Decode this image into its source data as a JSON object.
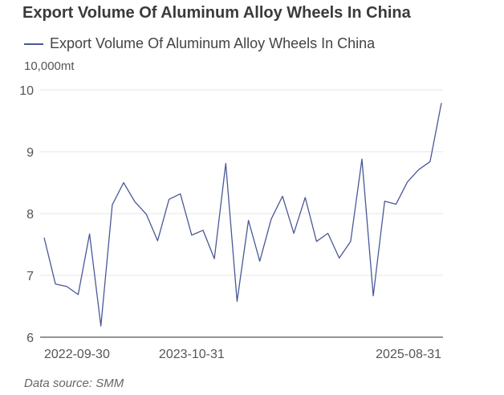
{
  "chart_data": {
    "type": "line",
    "title": "Export Volume Of Aluminum Alloy Wheels In China",
    "ylabel": "10,000mt",
    "xlabel": "",
    "ylim": [
      6,
      10
    ],
    "yticks": [
      "6",
      "7",
      "8",
      "9",
      "10"
    ],
    "xtick_labels": [
      "2022-09-30",
      "2023-10-31",
      "2025-08-31"
    ],
    "grid": true,
    "legend_position": "top-left",
    "x": [
      "2022-09-30",
      "2022-10-31",
      "2022-11-30",
      "2022-12-31",
      "2023-01-31",
      "2023-02-28",
      "2023-03-31",
      "2023-04-30",
      "2023-05-31",
      "2023-06-30",
      "2023-07-31",
      "2023-08-31",
      "2023-09-30",
      "2023-10-31",
      "2023-11-30",
      "2023-12-31",
      "2024-01-31",
      "2024-02-29",
      "2024-03-31",
      "2024-04-30",
      "2024-05-31",
      "2024-06-30",
      "2024-07-31",
      "2024-08-31",
      "2024-09-30",
      "2024-10-31",
      "2024-11-30",
      "2024-12-31",
      "2025-01-31",
      "2025-02-28",
      "2025-03-31",
      "2025-04-30",
      "2025-05-31",
      "2025-06-30",
      "2025-07-31",
      "2025-08-31"
    ],
    "series": [
      {
        "name": "Export Volume Of Aluminum Alloy Wheels In China",
        "color": "#4a5896",
        "values": [
          7.61,
          6.86,
          6.82,
          6.69,
          7.67,
          6.18,
          8.14,
          8.5,
          8.19,
          7.99,
          7.56,
          8.23,
          8.32,
          7.65,
          7.73,
          7.27,
          8.81,
          6.58,
          7.89,
          7.23,
          7.91,
          8.28,
          7.68,
          8.26,
          7.55,
          7.68,
          7.28,
          7.55,
          8.88,
          6.67,
          8.2,
          8.15,
          8.51,
          8.71,
          8.84,
          9.79
        ]
      }
    ]
  },
  "source": "Data source:  SMM"
}
